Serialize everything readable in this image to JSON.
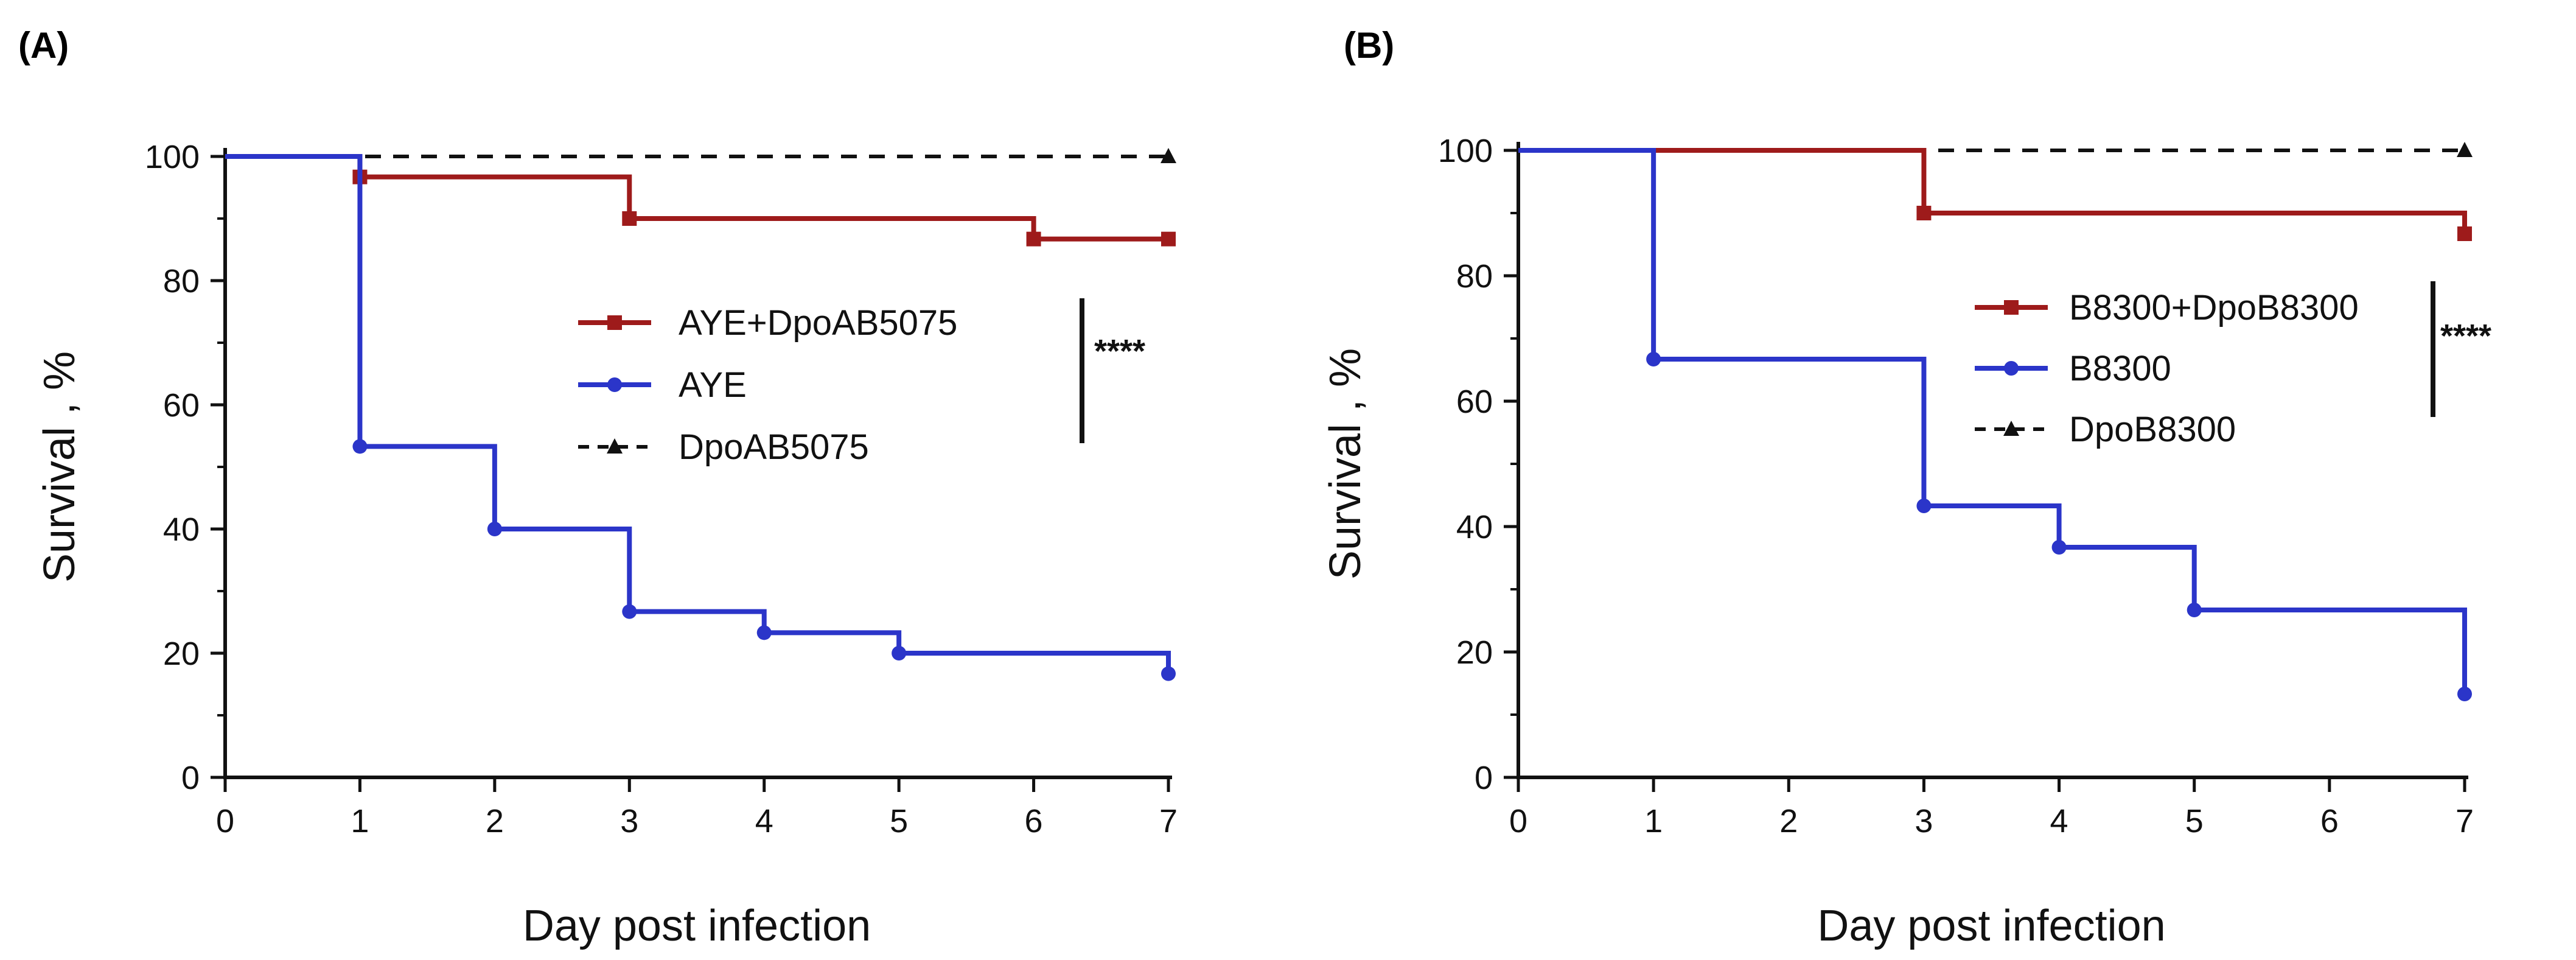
{
  "chart_data": [
    {
      "panel_label": "(A)",
      "type": "line",
      "step": true,
      "xlabel": "Day post infection",
      "ylabel": "Survival , %",
      "xlim": [
        0,
        7
      ],
      "ylim": [
        0,
        100
      ],
      "xticks": [
        "0",
        "1",
        "2",
        "3",
        "4",
        "5",
        "6",
        "7"
      ],
      "yticks": [
        "0",
        "20",
        "40",
        "60",
        "80",
        "100"
      ],
      "legend_position": "right-middle",
      "significance": "****",
      "series": [
        {
          "name": "AYE+DpoAB5075",
          "color": "#9e1b1b",
          "marker": "square",
          "dashed": false,
          "points": [
            [
              0,
              100
            ],
            [
              1,
              96.7
            ],
            [
              3,
              90
            ],
            [
              6,
              86.7
            ],
            [
              7,
              86.7
            ]
          ]
        },
        {
          "name": "AYE",
          "color": "#2b35c9",
          "marker": "circle",
          "dashed": false,
          "points": [
            [
              0,
              100
            ],
            [
              1,
              53.3
            ],
            [
              2,
              40
            ],
            [
              3,
              26.7
            ],
            [
              4,
              23.3
            ],
            [
              5,
              20
            ],
            [
              7,
              16.7
            ]
          ]
        },
        {
          "name": "DpoAB5075",
          "color": "#111111",
          "marker": "triangle",
          "dashed": true,
          "points": [
            [
              0,
              100
            ],
            [
              7,
              100
            ]
          ]
        }
      ]
    },
    {
      "panel_label": "(B)",
      "type": "line",
      "step": true,
      "xlabel": "Day post infection",
      "ylabel": "Survival , %",
      "xlim": [
        0,
        7
      ],
      "ylim": [
        0,
        100
      ],
      "xticks": [
        "0",
        "1",
        "2",
        "3",
        "4",
        "5",
        "6",
        "7"
      ],
      "yticks": [
        "0",
        "20",
        "40",
        "60",
        "80",
        "100"
      ],
      "legend_position": "right-middle",
      "significance": "****",
      "series": [
        {
          "name": "B8300+DpoB8300",
          "color": "#9e1b1b",
          "marker": "square",
          "dashed": false,
          "points": [
            [
              0,
              100
            ],
            [
              3,
              90
            ],
            [
              7,
              86.7
            ]
          ]
        },
        {
          "name": "B8300",
          "color": "#2b35c9",
          "marker": "circle",
          "dashed": false,
          "points": [
            [
              0,
              100
            ],
            [
              1,
              66.7
            ],
            [
              3,
              43.3
            ],
            [
              4,
              36.7
            ],
            [
              5,
              26.7
            ],
            [
              7,
              13.3
            ]
          ]
        },
        {
          "name": "DpoB8300",
          "color": "#111111",
          "marker": "triangle",
          "dashed": true,
          "points": [
            [
              0,
              100
            ],
            [
              7,
              100
            ]
          ]
        }
      ]
    }
  ]
}
